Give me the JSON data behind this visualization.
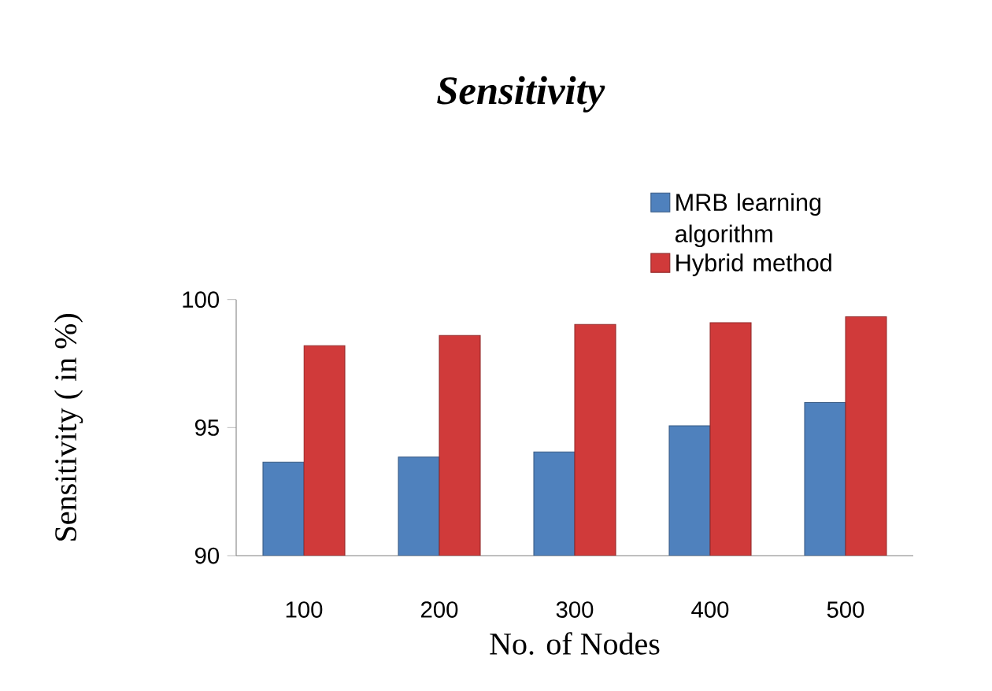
{
  "chart_data": {
    "type": "bar",
    "title": "Sensitivity",
    "xlabel": "No. of Nodes",
    "ylabel": "Sensitivity ( in %)",
    "categories": [
      "100",
      "200",
      "300",
      "400",
      "500"
    ],
    "series": [
      {
        "name": "MRB learning algorithm",
        "color": "#4f81bd",
        "values": [
          93.65,
          93.85,
          94.05,
          95.07,
          95.98
        ]
      },
      {
        "name": "Hybrid method",
        "color": "#d03a3a",
        "values": [
          98.2,
          98.6,
          99.03,
          99.1,
          99.33
        ]
      }
    ],
    "ylim": [
      90,
      100
    ],
    "yticks": [
      90,
      95,
      100
    ],
    "grid": false,
    "legend": "top right"
  }
}
